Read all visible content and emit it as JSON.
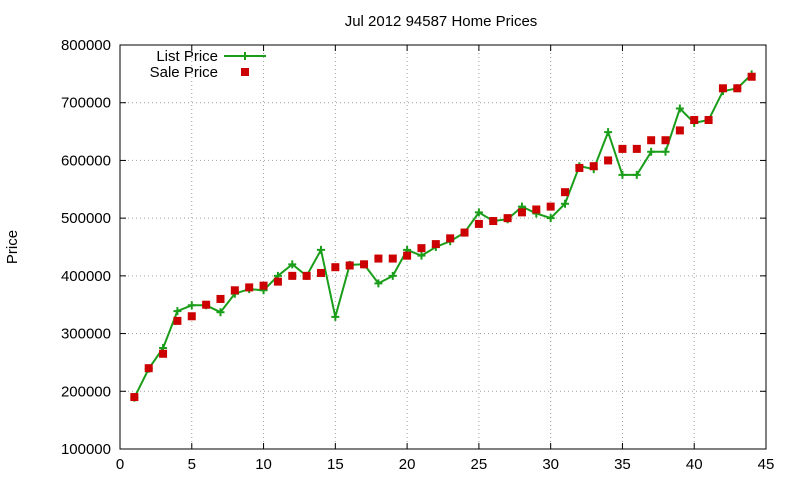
{
  "chart_data": {
    "type": "line",
    "title": "Jul 2012 94587 Home Prices",
    "xlabel": "",
    "ylabel": "Price",
    "xlim": [
      0,
      45
    ],
    "ylim": [
      100000,
      800000
    ],
    "x_ticks": [
      "0",
      "5",
      "10",
      "15",
      "20",
      "25",
      "30",
      "35",
      "40",
      "45"
    ],
    "y_ticks": [
      "100000",
      "200000",
      "300000",
      "400000",
      "500000",
      "600000",
      "700000",
      "800000"
    ],
    "grid": true,
    "legend_position": "top-left",
    "series": [
      {
        "name": "List Price",
        "style": "line+plus-markers",
        "color": "#1a9e1a",
        "x": [
          1,
          2,
          3,
          4,
          5,
          6,
          7,
          8,
          9,
          10,
          11,
          12,
          13,
          14,
          15,
          16,
          17,
          18,
          19,
          20,
          21,
          22,
          23,
          24,
          25,
          26,
          27,
          28,
          29,
          30,
          31,
          32,
          33,
          34,
          35,
          36,
          37,
          38,
          39,
          40,
          41,
          42,
          43,
          44
        ],
        "values": [
          189000,
          239000,
          275000,
          339000,
          349000,
          349000,
          337000,
          369000,
          377000,
          375000,
          400000,
          420000,
          400000,
          445000,
          329000,
          419000,
          420000,
          387000,
          400000,
          445000,
          435000,
          450000,
          460000,
          475000,
          510000,
          495000,
          498000,
          520000,
          508000,
          500000,
          525000,
          590000,
          585000,
          649000,
          575000,
          575000,
          615000,
          615000,
          690000,
          665000,
          670000,
          720000,
          725000,
          749000
        ]
      },
      {
        "name": "Sale Price",
        "style": "square-markers",
        "color": "#cc0000",
        "x": [
          1,
          2,
          3,
          4,
          5,
          6,
          7,
          8,
          9,
          10,
          11,
          12,
          13,
          14,
          15,
          16,
          17,
          18,
          19,
          20,
          21,
          22,
          23,
          24,
          25,
          26,
          27,
          28,
          29,
          30,
          31,
          32,
          33,
          34,
          35,
          36,
          37,
          38,
          39,
          40,
          41,
          42,
          43,
          44
        ],
        "values": [
          190000,
          240000,
          265000,
          322000,
          330000,
          350000,
          360000,
          375000,
          380000,
          383000,
          390000,
          400000,
          400000,
          405000,
          415000,
          418000,
          420000,
          430000,
          430000,
          435000,
          448000,
          455000,
          465000,
          475000,
          490000,
          495000,
          500000,
          510000,
          515000,
          520000,
          545000,
          587000,
          590000,
          600000,
          620000,
          620000,
          635000,
          635000,
          652000,
          670000,
          670000,
          725000,
          725000,
          745000
        ]
      }
    ]
  }
}
